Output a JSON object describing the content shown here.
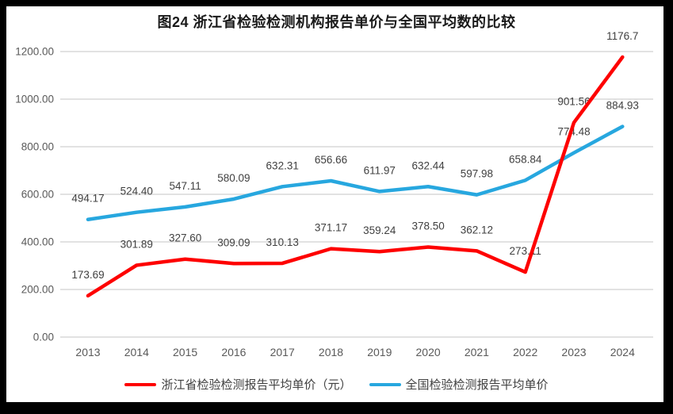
{
  "title": "图24  浙江省检验检测机构报告单价与全国平均数的比较",
  "colors": {
    "zhejiang_red": "#fe0000",
    "national_blue": "#27a7df",
    "gridline": "#d9d9d9",
    "axis_text": "#595959",
    "data_label_text": "#404040",
    "frame": "#000000",
    "panel": "#ffffff"
  },
  "legend": {
    "items": [
      {
        "label": "浙江省检验检测报告平均单价（元）",
        "color": "#fe0000"
      },
      {
        "label": "全国检验检测报告平均单价",
        "color": "#27a7df"
      }
    ]
  },
  "chart_data": {
    "type": "line",
    "title": "图24  浙江省检验检测机构报告单价与全国平均数的比较",
    "categories": [
      "2013",
      "2014",
      "2015",
      "2016",
      "2017",
      "2018",
      "2019",
      "2020",
      "2021",
      "2022",
      "2023",
      "2024"
    ],
    "series": [
      {
        "name": "全国检验检测报告平均单价",
        "key": "national",
        "color": "#27a7df",
        "values": [
          494.17,
          524.4,
          547.11,
          580.09,
          632.31,
          656.66,
          611.97,
          632.44,
          597.98,
          658.84,
          774.48,
          884.93
        ],
        "labels": [
          "494.17",
          "524.40",
          "547.11",
          "580.09",
          "632.31",
          "656.66",
          "611.97",
          "632.44",
          "597.98",
          "658.84",
          "774.48",
          "884.93"
        ]
      },
      {
        "name": "浙江省检验检测报告平均单价（元）",
        "key": "zhejiang",
        "color": "#fe0000",
        "values": [
          173.69,
          301.89,
          327.6,
          309.09,
          310.13,
          371.17,
          359.24,
          378.5,
          362.12,
          273.11,
          901.56,
          1176.7
        ],
        "labels": [
          "173.69",
          "301.89",
          "327.60",
          "309.09",
          "310.13",
          "371.17",
          "359.24",
          "378.50",
          "362.12",
          "273.11",
          "901.56",
          "1176.7"
        ]
      }
    ],
    "xlabel": "",
    "ylabel": "",
    "ylim": [
      0,
      1200
    ],
    "y_tick_labels": [
      "1200.00",
      "1000.00",
      "800.00",
      "600.00",
      "400.00",
      "200.00",
      "0.00"
    ],
    "grid": true,
    "legend_position": "bottom"
  }
}
